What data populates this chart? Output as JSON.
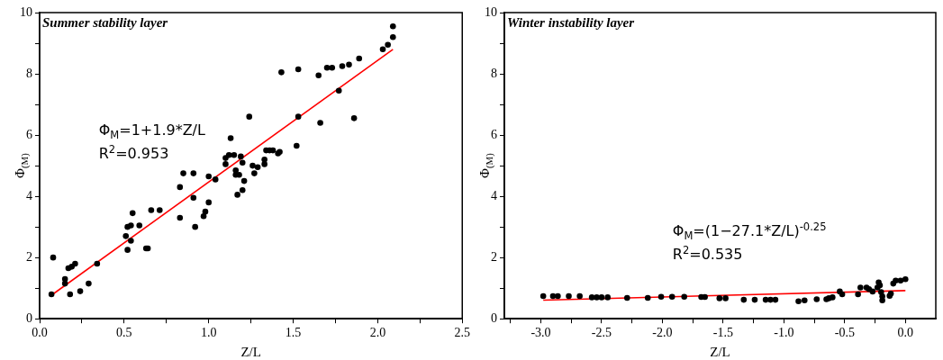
{
  "chart_data": [
    {
      "type": "scatter",
      "title": "Summer stability layer",
      "xlabel": "Z/L",
      "ylabel": "Φ$_{(M)}$",
      "xlim": [
        0,
        2.5
      ],
      "ylim": [
        0,
        10
      ],
      "xticks": [
        {
          "value": 0,
          "label": "0.0"
        },
        {
          "value": 0.25,
          "label": null
        },
        0.5,
        {
          "value": 0.75,
          "label": null
        },
        {
          "value": 1,
          "label": "1.0"
        },
        {
          "value": 1.25,
          "label": null
        },
        1.5,
        {
          "value": 1.75,
          "label": null
        },
        {
          "value": 2,
          "label": "2.0"
        },
        {
          "value": 2.25,
          "label": null
        },
        2.5
      ],
      "yticks": [
        0,
        {
          "value": 1,
          "label": null
        },
        2,
        {
          "value": 3,
          "label": null
        },
        4,
        {
          "value": 5,
          "label": null
        },
        6,
        {
          "value": 7,
          "label": null
        },
        8,
        {
          "value": 9,
          "label": null
        },
        10
      ],
      "grid": false,
      "legend": false,
      "annotations": [
        "Φ$_{M}$=1+1.9*Z/L",
        "R$^{2}$=0.953"
      ],
      "series": [
        {
          "type": "scatter",
          "marker": "circle",
          "color": "#000000",
          "x": [
            0.07,
            0.08,
            0.15,
            0.15,
            0.17,
            0.18,
            0.19,
            0.21,
            0.24,
            0.29,
            0.34,
            0.51,
            0.52,
            0.52,
            0.54,
            0.54,
            0.55,
            0.59,
            0.63,
            0.64,
            0.66,
            0.71,
            0.83,
            0.83,
            0.85,
            0.91,
            0.91,
            0.92,
            0.97,
            0.98,
            1.0,
            1.0,
            1.04,
            1.1,
            1.1,
            1.12,
            1.13,
            1.15,
            1.16,
            1.16,
            1.17,
            1.18,
            1.19,
            1.2,
            1.2,
            1.21,
            1.24,
            1.26,
            1.27,
            1.29,
            1.33,
            1.33,
            1.34,
            1.36,
            1.38,
            1.41,
            1.42,
            1.43,
            1.52,
            1.53,
            1.53,
            1.65,
            1.66,
            1.7,
            1.73,
            1.77,
            1.79,
            1.83,
            1.86,
            1.89,
            2.03,
            2.06,
            2.09,
            2.09
          ],
          "values": [
            0.8,
            2.0,
            1.3,
            1.15,
            1.65,
            0.8,
            1.7,
            1.8,
            0.9,
            1.15,
            1.8,
            2.7,
            2.25,
            3.0,
            3.05,
            2.55,
            3.45,
            3.05,
            2.3,
            2.3,
            3.55,
            3.55,
            3.3,
            4.3,
            4.75,
            3.95,
            4.75,
            3.0,
            3.35,
            3.5,
            3.8,
            4.65,
            4.55,
            5.05,
            5.25,
            5.35,
            5.9,
            5.35,
            4.85,
            4.7,
            4.05,
            4.7,
            5.3,
            4.2,
            5.1,
            4.5,
            6.6,
            5.0,
            4.75,
            4.95,
            5.05,
            5.2,
            5.5,
            5.5,
            5.5,
            5.4,
            5.45,
            8.05,
            5.65,
            6.6,
            8.15,
            7.95,
            6.4,
            8.2,
            8.2,
            7.45,
            8.25,
            8.3,
            6.55,
            8.5,
            8.8,
            8.95,
            9.2,
            9.55
          ]
        },
        {
          "type": "line",
          "marker": "none",
          "color": "#ff0000",
          "x": [
            0.07,
            2.09
          ],
          "values": [
            0.77,
            8.8
          ]
        }
      ]
    },
    {
      "type": "scatter",
      "title": "Winter instability layer",
      "xlabel": "Z/L",
      "ylabel": "Φ$_{(M)}$",
      "xlim": [
        -3.3,
        0.25
      ],
      "ylim": [
        0,
        10
      ],
      "xticks": [
        {
          "value": -3.25,
          "label": null
        },
        {
          "value": -3,
          "label": "-3.0"
        },
        {
          "value": -2.75,
          "label": null
        },
        -2.5,
        {
          "value": -2.25,
          "label": null
        },
        {
          "value": -2,
          "label": "-2.0"
        },
        {
          "value": -1.75,
          "label": null
        },
        -1.5,
        {
          "value": -1.25,
          "label": null
        },
        {
          "value": -1,
          "label": "-1.0"
        },
        {
          "value": -0.75,
          "label": null
        },
        -0.5,
        {
          "value": -0.25,
          "label": null
        },
        {
          "value": 0,
          "label": "0.0"
        }
      ],
      "yticks": [
        0,
        {
          "value": 1,
          "label": null
        },
        2,
        {
          "value": 3,
          "label": null
        },
        4,
        {
          "value": 5,
          "label": null
        },
        6,
        {
          "value": 7,
          "label": null
        },
        8,
        {
          "value": 9,
          "label": null
        },
        10
      ],
      "grid": false,
      "legend": false,
      "annotations": [
        "Φ$_{M}$=(1−27.1*Z/L)$^{-0.25}$",
        "R$^{2}$=0.535"
      ],
      "series": [
        {
          "type": "scatter",
          "marker": "circle",
          "color": "#000000",
          "x": [
            -2.98,
            -2.9,
            -2.86,
            -2.77,
            -2.68,
            -2.58,
            -2.54,
            -2.5,
            -2.45,
            -2.29,
            -2.12,
            -2.01,
            -1.92,
            -1.82,
            -1.68,
            -1.65,
            -1.53,
            -1.48,
            -1.33,
            -1.24,
            -1.15,
            -1.11,
            -1.07,
            -0.88,
            -0.83,
            -0.73,
            -0.65,
            -0.63,
            -0.6,
            -0.54,
            -0.52,
            -0.39,
            -0.37,
            -0.32,
            -0.3,
            -0.27,
            -0.23,
            -0.22,
            -0.21,
            -0.2,
            -0.19,
            -0.19,
            -0.13,
            -0.12,
            -0.1,
            -0.08,
            -0.04,
            0.0
          ],
          "values": [
            0.74,
            0.74,
            0.74,
            0.74,
            0.74,
            0.7,
            0.7,
            0.7,
            0.7,
            0.68,
            0.68,
            0.72,
            0.72,
            0.72,
            0.71,
            0.71,
            0.67,
            0.67,
            0.62,
            0.62,
            0.62,
            0.62,
            0.62,
            0.57,
            0.6,
            0.64,
            0.64,
            0.67,
            0.7,
            0.89,
            0.8,
            0.8,
            1.02,
            1.02,
            0.97,
            0.89,
            1.02,
            1.19,
            1.09,
            0.87,
            0.73,
            0.6,
            0.75,
            0.82,
            1.15,
            1.25,
            1.25,
            1.29
          ]
        },
        {
          "type": "line",
          "marker": "none",
          "color": "#ff0000",
          "x": [
            -2.98,
            0.0
          ],
          "values": [
            0.61,
            0.92
          ]
        }
      ]
    }
  ]
}
